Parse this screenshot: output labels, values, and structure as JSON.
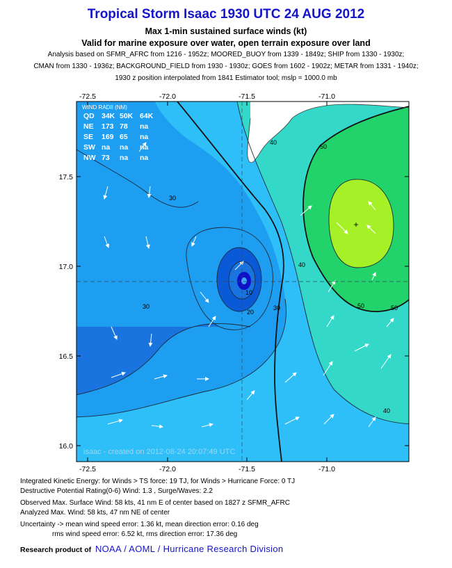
{
  "header": {
    "title": "Tropical Storm Isaac 1930 UTC 24 AUG 2012",
    "subtitle1": "Max 1-min sustained surface winds (kt)",
    "subtitle2": "Valid for marine exposure over water, open terrain exposure over land",
    "analysis_line1": "Analysis based on SFMR_AFRC from 1216 - 1952z; MOORED_BUOY from 1339 - 1849z; SHIP from 1330 - 1930z;",
    "analysis_line2": "CMAN from 1330 - 1936z; BACKGROUND_FIELD from 1930 - 1930z; GOES from 1602 - 1902z; METAR from 1331 - 1940z;",
    "analysis_line3": "1930 z position interpolated from 1841 Estimator tool; mslp = 1000.0 mb"
  },
  "map": {
    "lon_ticks": [
      "-72.5",
      "-72.0",
      "-71.5",
      "-71.0"
    ],
    "lat_ticks": [
      "17.5",
      "17.0",
      "16.5",
      "16.0"
    ],
    "contour_labels": [
      "30",
      "30",
      "30",
      "40",
      "40",
      "40",
      "50",
      "50",
      "50",
      "20",
      "10"
    ],
    "wind_radii": {
      "header": "WIND RADII (NM)",
      "rows": [
        [
          "QD",
          "34K",
          "50K",
          "64K"
        ],
        [
          "NE",
          "173",
          "78",
          "na"
        ],
        [
          "SE",
          "169",
          "65",
          "na"
        ],
        [
          "SW",
          "na",
          "na",
          "na"
        ],
        [
          "NW",
          "73",
          "na",
          "na"
        ]
      ]
    },
    "stamp": "isaac - created on 2012-08-24 20:07:49 UTC",
    "colors": {
      "land": "#ffffff",
      "lt10": "#1a74e0",
      "b10_20": "#0a5ad8",
      "b20_30": "#1e9ef0",
      "b30_40": "#2ebef8",
      "b40_50": "#33d8c8",
      "b50_60": "#22d26a",
      "gt60": "#a6f028",
      "center": "#1010c8",
      "eye": "#3ca8ff"
    }
  },
  "footer": {
    "ike": "Integrated Kinetic Energy: for Winds > TS force: 19 TJ, for Winds > Hurricane Force: 0 TJ",
    "dpr": "Destructive Potential Rating(0-6)   Wind: 1.3 , Surge/Waves: 2.2",
    "observed": "Observed Max. Surface Wind: 58 kts, 41 nm E of center based on 1827 z SFMR_AFRC",
    "analyzed": "Analyzed Max. Wind: 58 kts, 47 nm  NE of center",
    "uncertainty1": "Uncertainty -> mean wind speed error: 1.36 kt, mean direction error: 0.16 deg",
    "uncertainty2": "rms wind speed error: 6.52 kt, rms direction error: 17.36 deg",
    "credit_prefix": "Research product of",
    "credit_org": "NOAA  /  AOML  /  Hurricane Research Division"
  }
}
